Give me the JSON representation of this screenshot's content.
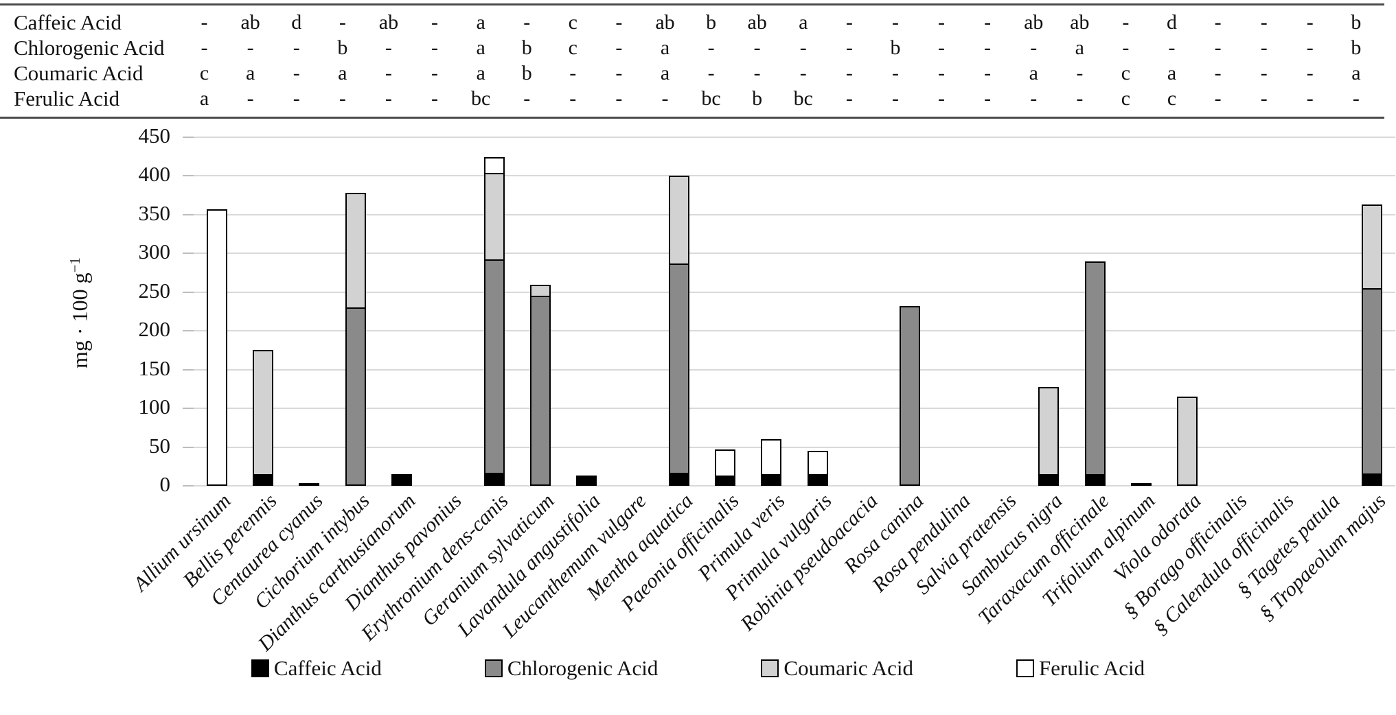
{
  "table": {
    "rows": [
      {
        "label": "Caffeic Acid",
        "cells": [
          "-",
          "ab",
          "d",
          "-",
          "ab",
          "-",
          "a",
          "-",
          "c",
          "-",
          "ab",
          "b",
          "ab",
          "a",
          "-",
          "-",
          "-",
          "-",
          "ab",
          "ab",
          "-",
          "d",
          "-",
          "-",
          "-",
          "b"
        ]
      },
      {
        "label": "Chlorogenic Acid",
        "cells": [
          "-",
          "-",
          "-",
          "b",
          "-",
          "-",
          "a",
          "b",
          "c",
          "-",
          "a",
          "-",
          "-",
          "-",
          "-",
          "b",
          "-",
          "-",
          "-",
          "a",
          "-",
          "-",
          "-",
          "-",
          "-",
          "b"
        ]
      },
      {
        "label": "Coumaric Acid",
        "cells": [
          "c",
          "a",
          "-",
          "a",
          "-",
          "-",
          "a",
          "b",
          "-",
          "-",
          "a",
          "-",
          "-",
          "-",
          "-",
          "-",
          "-",
          "-",
          "a",
          "-",
          "c",
          "a",
          "-",
          "-",
          "-",
          "a"
        ]
      },
      {
        "label": "Ferulic Acid",
        "cells": [
          "a",
          "-",
          "-",
          "-",
          "-",
          "-",
          "bc",
          "-",
          "-",
          "-",
          "-",
          "bc",
          "b",
          "bc",
          "-",
          "-",
          "-",
          "-",
          "-",
          "-",
          "c",
          "c",
          "-",
          "-",
          "-",
          "-"
        ]
      }
    ]
  },
  "chart_data": {
    "type": "bar",
    "stacked": true,
    "title": "",
    "xlabel": "",
    "ylabel": "mg · 100 g⁻¹",
    "ylabel_base": "mg · 100 g",
    "ylabel_exp": "−1",
    "ylim": [
      0,
      450
    ],
    "yticks": [
      0,
      50,
      100,
      150,
      200,
      250,
      300,
      350,
      400,
      450
    ],
    "grid": true,
    "legend_position": "bottom",
    "categories": [
      "Allium ursinum",
      "Bellis perennis",
      "Centaurea cyanus",
      "Cichorium intybus",
      "Dianthus carthusianorum",
      "Dianthus pavonius",
      "Erythronium dens-canis",
      "Geranium sylvaticum",
      "Lavandula angustifolia",
      "Leucanthemum vulgare",
      "Mentha aquatica",
      "Paeonia officinalis",
      "Primula veris",
      "Primula vulgaris",
      "Robinia pseudoacacia",
      "Rosa canina",
      "Rosa pendulina",
      "Salvia pratensis",
      "Sambucus nigra",
      "Taraxacum officinale",
      "Trifolium alpinum",
      "Viola odorata",
      "§ Borago officinalis",
      "§ Calendula officinalis",
      "§ Tagetes patula",
      "§ Tropaeolum majus"
    ],
    "series": [
      {
        "name": "Caffeic Acid",
        "color": "#000000",
        "values": [
          0,
          15,
          2,
          0,
          15,
          0,
          17,
          0,
          13,
          0,
          17,
          13,
          15,
          15,
          0,
          0,
          0,
          0,
          15,
          15,
          0,
          0,
          0,
          0,
          0,
          16
        ]
      },
      {
        "name": "Chlorogenic Acid",
        "color": "#8a8a8a",
        "values": [
          0,
          0,
          0,
          230,
          0,
          0,
          275,
          245,
          0,
          0,
          270,
          0,
          0,
          0,
          0,
          232,
          0,
          0,
          0,
          275,
          0,
          0,
          0,
          0,
          0,
          239
        ]
      },
      {
        "name": "Coumaric Acid",
        "color": "#d2d2d2",
        "values": [
          0,
          160,
          0,
          148,
          0,
          0,
          112,
          15,
          0,
          0,
          113,
          0,
          0,
          0,
          0,
          0,
          0,
          0,
          113,
          0,
          3,
          115,
          0,
          0,
          0,
          108
        ]
      },
      {
        "name": "Ferulic Acid",
        "color": "#ffffff",
        "values": [
          357,
          0,
          0,
          0,
          0,
          0,
          20,
          0,
          0,
          0,
          0,
          34,
          45,
          30,
          0,
          0,
          0,
          0,
          0,
          0,
          0,
          0,
          0,
          0,
          0,
          0
        ]
      }
    ],
    "totals": [
      357,
      175,
      2,
      378,
      15,
      0,
      424,
      260,
      13,
      0,
      400,
      47,
      60,
      45,
      0,
      232,
      0,
      0,
      128,
      290,
      3,
      115,
      0,
      0,
      0,
      363
    ],
    "gridline_color": "#d9d9d9",
    "bar_border_color": "#000000"
  }
}
